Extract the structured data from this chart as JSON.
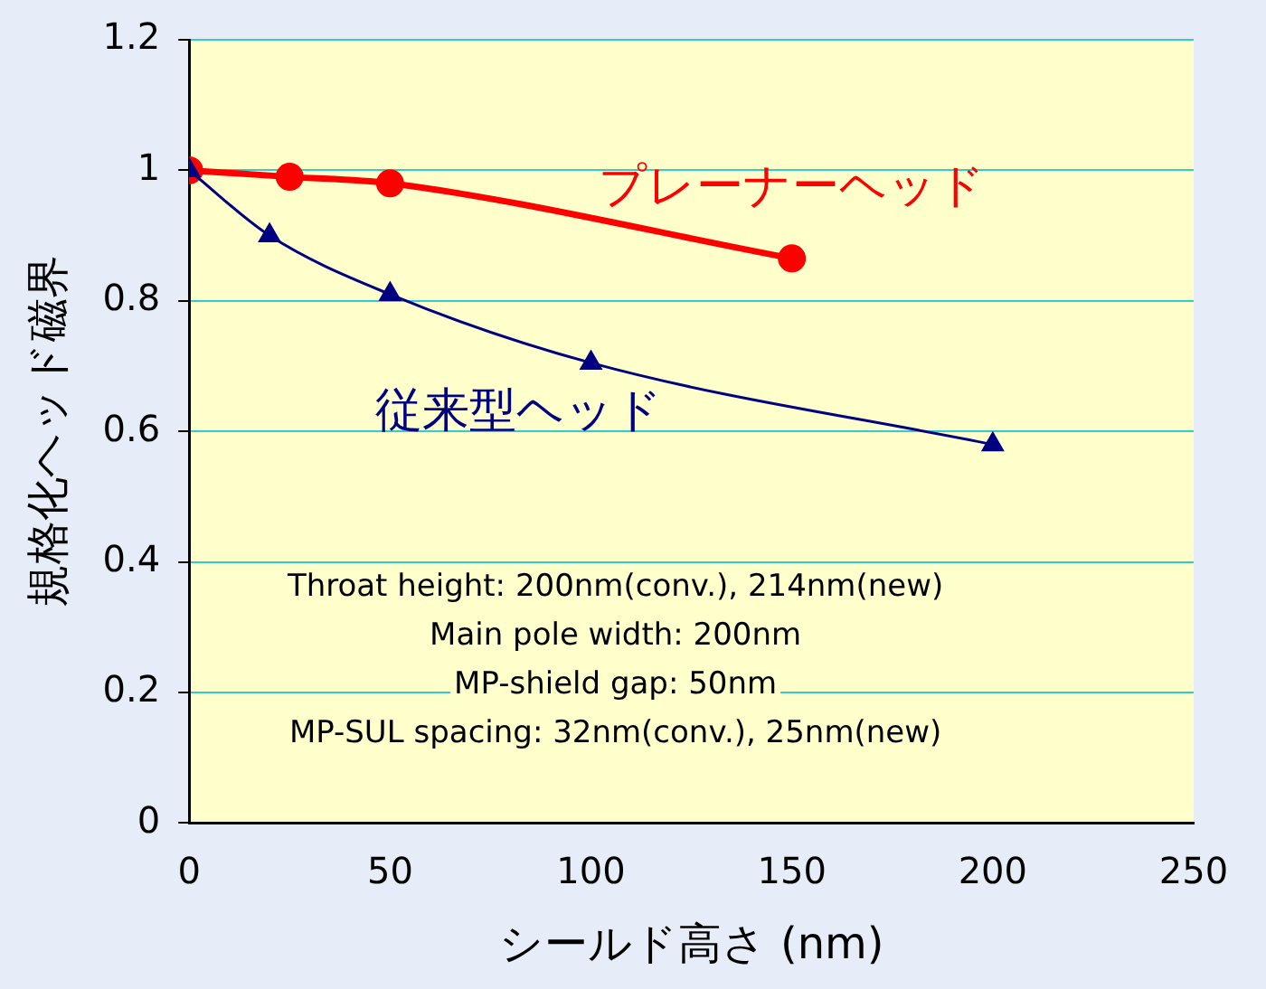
{
  "chart_data": {
    "type": "line",
    "xlabel": "シールド高さ (nm)",
    "ylabel": "規格化ヘッド磁界",
    "xlim": [
      0,
      250
    ],
    "xticks": [
      0,
      50,
      100,
      150,
      200,
      250
    ],
    "ylim": [
      0,
      1.2
    ],
    "yticks": [
      0,
      0.2,
      0.4,
      0.6,
      0.8,
      1,
      1.2
    ],
    "grid": "y",
    "legend": false,
    "series": [
      {
        "name": "プレーナーヘッド",
        "color": "#ff0000",
        "marker": "circle",
        "x": [
          0,
          25,
          50,
          150
        ],
        "values": [
          1,
          0.99,
          0.98,
          0.865
        ]
      },
      {
        "name": "従来型ヘッド",
        "color": "#000080",
        "marker": "triangle",
        "x": [
          0,
          20,
          50,
          100,
          200
        ],
        "values": [
          1,
          0.9,
          0.81,
          0.705,
          0.58
        ]
      }
    ],
    "annotations": [
      "Throat height: 200nm(conv.), 214nm(new)",
      "Main pole width: 200nm",
      "MP-shield gap: 50nm",
      "MP-SUL spacing: 32nm(conv.), 25nm(new)"
    ]
  }
}
